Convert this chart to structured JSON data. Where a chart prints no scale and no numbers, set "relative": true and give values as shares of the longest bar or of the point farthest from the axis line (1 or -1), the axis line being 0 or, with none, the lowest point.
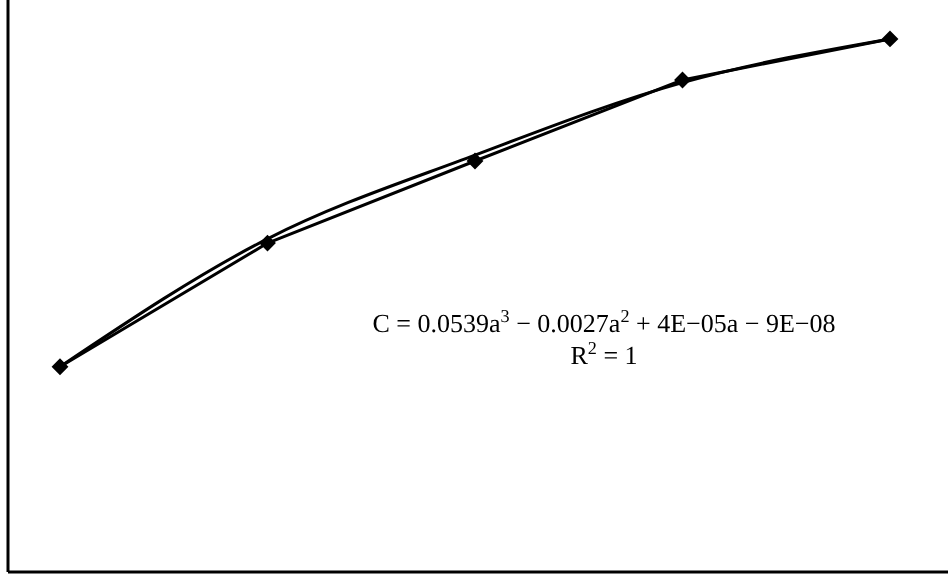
{
  "chart_data": {
    "type": "line",
    "relative": true,
    "categories": [
      null,
      null,
      null,
      null,
      null
    ],
    "marker": "diamond",
    "line_style": "solid",
    "grid": false,
    "legend": false,
    "series": [
      {
        "color": "#000000",
        "values": [
          0.385,
          0.617,
          0.771,
          0.923,
          1
        ]
      },
      {
        "color": "#000000",
        "values": [
          0.385,
          0.625,
          0.782,
          0.918,
          1
        ],
        "marker": "none"
      }
    ],
    "annotations": [
      "C = 0.0539a$^{3}$ − 0.0027a$^{2}$ + 4E−05a − 9E−08",
      "R$^{2}$ = 1"
    ]
  }
}
